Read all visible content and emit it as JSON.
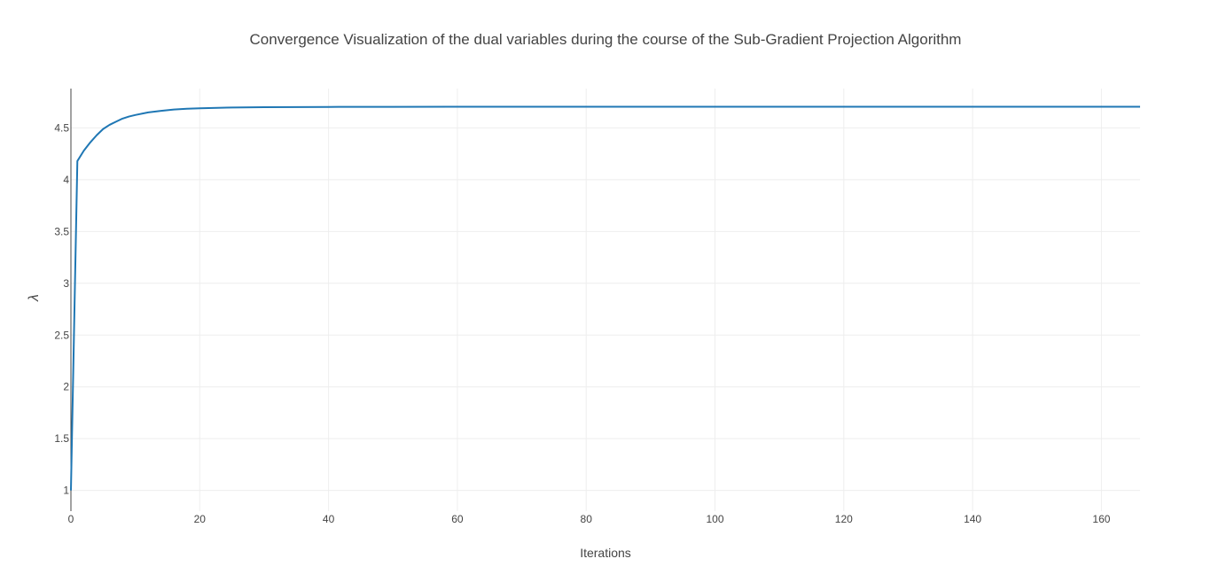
{
  "chart_data": {
    "type": "line",
    "title": "Convergence Visualization of the dual variables during the course of the Sub-Gradient Projection Algorithm",
    "xlabel": "Iterations",
    "ylabel": "λ",
    "xlim": [
      0,
      166
    ],
    "ylim": [
      0.8,
      4.88
    ],
    "x_ticks": [
      0,
      20,
      40,
      60,
      80,
      100,
      120,
      140,
      160
    ],
    "x_tick_labels": [
      "0",
      "20",
      "40",
      "60",
      "80",
      "100",
      "120",
      "140",
      "160"
    ],
    "y_ticks": [
      1,
      1.5,
      2,
      2.5,
      3,
      3.5,
      4,
      4.5
    ],
    "y_tick_labels": [
      "1",
      "1.5",
      "2",
      "2.5",
      "3",
      "3.5",
      "4",
      "4.5"
    ],
    "grid": true,
    "legend": "none",
    "series": [
      {
        "color": "#1f77b4",
        "x": [
          0,
          1,
          2,
          3,
          4,
          5,
          6,
          7,
          8,
          9,
          10,
          12,
          14,
          16,
          18,
          20,
          25,
          30,
          40,
          50,
          60,
          80,
          100,
          120,
          140,
          166
        ],
        "y": [
          1.0,
          4.18,
          4.28,
          4.36,
          4.43,
          4.49,
          4.53,
          4.56,
          4.59,
          4.61,
          4.625,
          4.65,
          4.665,
          4.678,
          4.685,
          4.69,
          4.697,
          4.7,
          4.703,
          4.704,
          4.705,
          4.705,
          4.705,
          4.705,
          4.705,
          4.705
        ]
      }
    ]
  }
}
